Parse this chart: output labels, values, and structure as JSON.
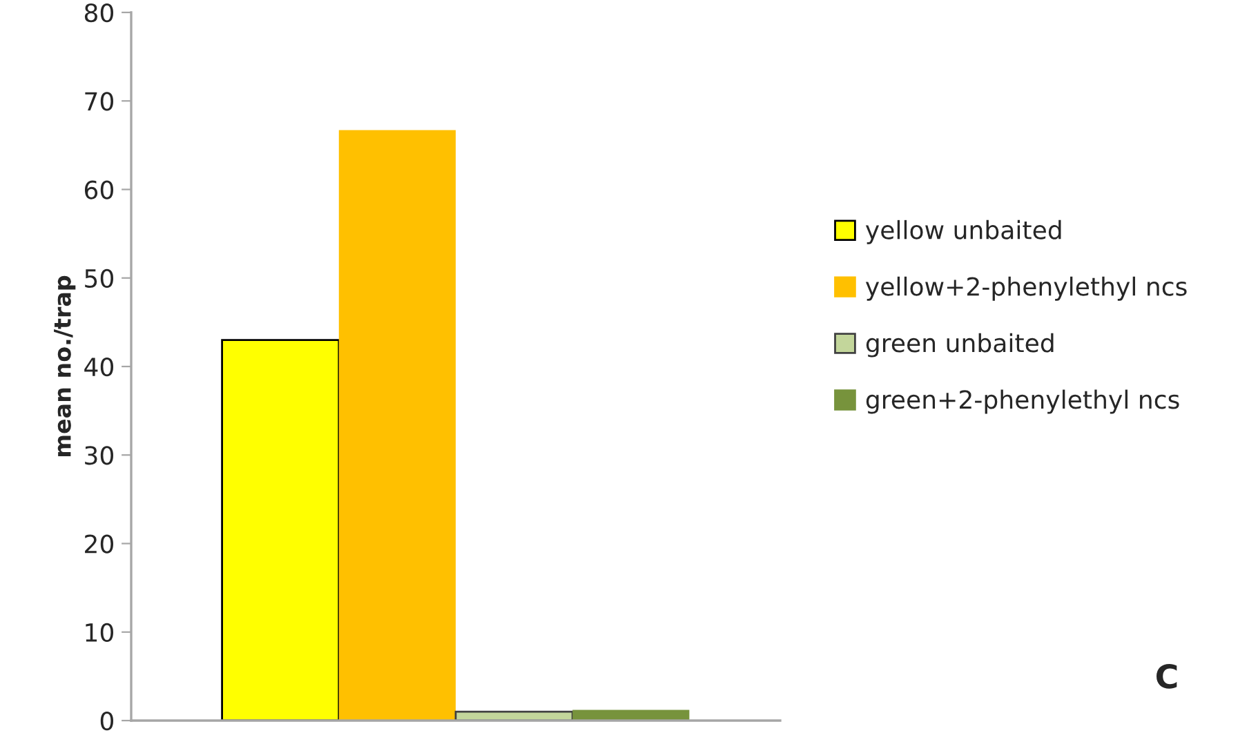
{
  "chart_data": {
    "type": "bar",
    "ylabel": "mean no./trap",
    "categories": [
      null
    ],
    "series": [
      {
        "name": "yellow unbaited",
        "color": "#ffff00",
        "values": [
          43
        ]
      },
      {
        "name": "yellow+2-phenylethyl ncs",
        "color": "#ffc000",
        "values": [
          66.7
        ]
      },
      {
        "name": "green unbaited",
        "color": "#c3d69b",
        "values": [
          1.0
        ]
      },
      {
        "name": "green+2-phenylethyl ncs",
        "color": "#77933c",
        "values": [
          1.2
        ]
      }
    ],
    "ylim": [
      0,
      80
    ],
    "yticks": [
      0,
      10,
      20,
      30,
      40,
      50,
      60,
      70,
      80
    ],
    "grid": false,
    "legend": "right",
    "annotations": [
      "C"
    ]
  }
}
